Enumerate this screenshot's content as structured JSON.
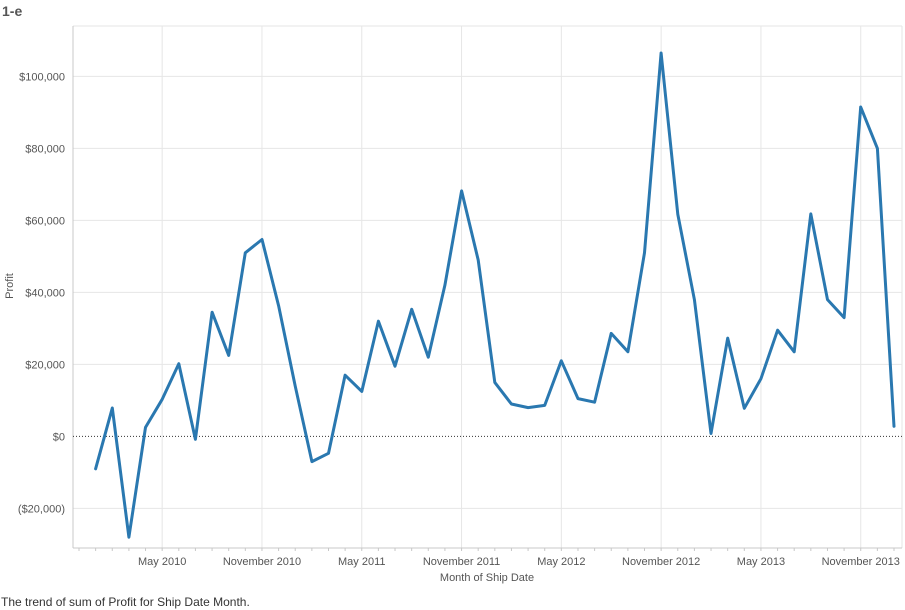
{
  "sheet_title": "1-e",
  "caption": "The trend of sum of Profit for Ship Date Month.",
  "colors": {
    "line": "#2a78b0",
    "grid": "#e6e6e6",
    "axis": "#c8c8c8",
    "text": "#555555",
    "zero_line": "#333333"
  },
  "chart_data": {
    "type": "line",
    "title": "",
    "xlabel": "Month of Ship Date",
    "ylabel": "Profit",
    "ylim": [
      -31000,
      114000
    ],
    "xlim": [
      "2009-12-01",
      "2014-01-01"
    ],
    "grid": true,
    "x_ticks": [
      {
        "date": "2010-05",
        "label": "May 2010"
      },
      {
        "date": "2010-11",
        "label": "November 2010"
      },
      {
        "date": "2011-05",
        "label": "May 2011"
      },
      {
        "date": "2011-11",
        "label": "November 2011"
      },
      {
        "date": "2012-05",
        "label": "May 2012"
      },
      {
        "date": "2012-11",
        "label": "November 2012"
      },
      {
        "date": "2013-05",
        "label": "May 2013"
      },
      {
        "date": "2013-11",
        "label": "November 2013"
      }
    ],
    "y_ticks": [
      {
        "value": -20000,
        "label": "($20,000)"
      },
      {
        "value": 0,
        "label": "$0"
      },
      {
        "value": 20000,
        "label": "$20,000"
      },
      {
        "value": 40000,
        "label": "$40,000"
      },
      {
        "value": 60000,
        "label": "$60,000"
      },
      {
        "value": 80000,
        "label": "$80,000"
      },
      {
        "value": 100000,
        "label": "$100,000"
      }
    ],
    "series": [
      {
        "x": [
          "2010-01",
          "2010-02",
          "2010-03",
          "2010-04",
          "2010-05",
          "2010-06",
          "2010-07",
          "2010-08",
          "2010-09",
          "2010-10",
          "2010-11",
          "2010-12",
          "2011-01",
          "2011-02",
          "2011-03",
          "2011-04",
          "2011-05",
          "2011-06",
          "2011-07",
          "2011-08",
          "2011-09",
          "2011-10",
          "2011-11",
          "2011-12",
          "2012-01",
          "2012-02",
          "2012-03",
          "2012-04",
          "2012-05",
          "2012-06",
          "2012-07",
          "2012-08",
          "2012-09",
          "2012-10",
          "2012-11",
          "2012-12",
          "2013-01",
          "2013-02",
          "2013-03",
          "2013-04",
          "2013-05",
          "2013-06",
          "2013-07",
          "2013-08",
          "2013-09",
          "2013-10",
          "2013-11",
          "2013-12",
          "2014-01"
        ],
        "values": [
          -9000,
          7900,
          -28000,
          2500,
          10300,
          20200,
          -800,
          34500,
          22500,
          51000,
          54700,
          36300,
          14000,
          -7000,
          -4700,
          17000,
          12500,
          32000,
          19500,
          35300,
          22000,
          42000,
          68200,
          49000,
          15000,
          9000,
          8000,
          8600,
          21000,
          10500,
          9500,
          28600,
          23500,
          51000,
          106500,
          61700,
          38000,
          800,
          27300,
          7800,
          16000,
          29500,
          23500,
          61800,
          38000,
          33000,
          91500,
          80000,
          2800
        ]
      }
    ]
  }
}
